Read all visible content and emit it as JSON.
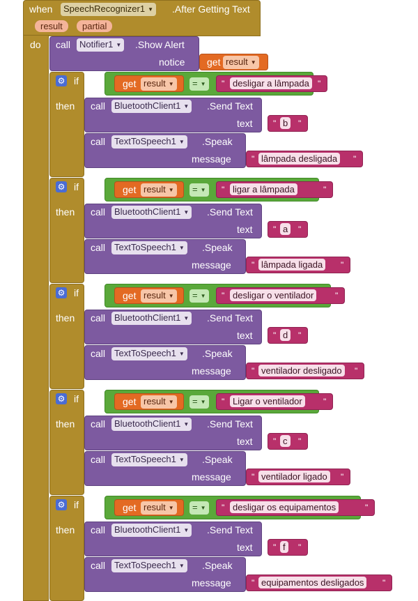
{
  "event": {
    "when": "when",
    "component": "SpeechRecognizer1",
    "event_name": ".After Getting Text",
    "params": [
      "result",
      "partial"
    ],
    "do": "do"
  },
  "notifier": {
    "call": "call",
    "component": "Notifier1",
    "method": ".Show Alert",
    "arg_label": "notice",
    "get": "get",
    "var": "result"
  },
  "labels": {
    "if": "if",
    "then": "then",
    "call": "call",
    "get": "get",
    "var": "result",
    "eq": "=",
    "send_component": "BluetoothClient1",
    "send_method": ".Send Text",
    "text_label": "text",
    "tts_component": "TextToSpeech1",
    "tts_method": ".Speak",
    "message_label": "message",
    "quote": "\""
  },
  "rules": [
    {
      "phrase": "desligar a lâmpada",
      "code": "b",
      "message": "lâmpada desligada"
    },
    {
      "phrase": "ligar a lâmpada",
      "code": "a",
      "message": "lâmpada ligada"
    },
    {
      "phrase": "desligar o ventilador",
      "code": "d",
      "message": "ventilador desligado"
    },
    {
      "phrase": "Ligar o ventilador",
      "code": "c",
      "message": "ventilador ligado"
    },
    {
      "phrase": "desligar os equipamentos",
      "code": "f",
      "message": "equipamentos desligados"
    }
  ]
}
